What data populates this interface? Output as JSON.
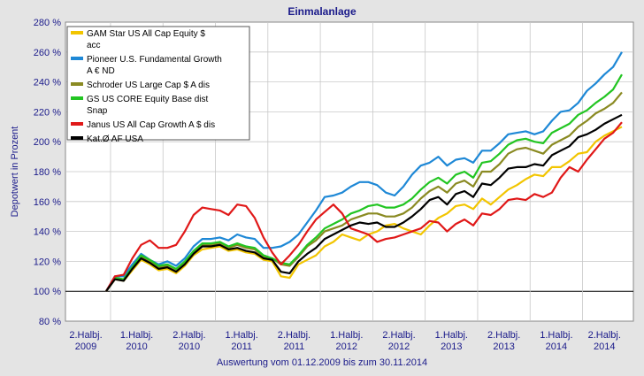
{
  "chart_data": {
    "type": "line",
    "title": "Einmalanlage",
    "ylabel": "Depotwert in Prozent",
    "footer": "Auswertung vom 01.12.2009 bis zum 30.11.2014",
    "ylim": [
      80,
      280
    ],
    "yticks": [
      "80 %",
      "100 %",
      "120 %",
      "140 %",
      "160 %",
      "180 %",
      "200 %",
      "220 %",
      "240 %",
      "260 %",
      "280 %"
    ],
    "xticks": [
      {
        "line1": "2.Halbj.",
        "line2": "2009"
      },
      {
        "line1": "1.Halbj.",
        "line2": "2010"
      },
      {
        "line1": "2.Halbj.",
        "line2": "2010"
      },
      {
        "line1": "1.Halbj.",
        "line2": "2011"
      },
      {
        "line1": "2.Halbj.",
        "line2": "2011"
      },
      {
        "line1": "1.Halbj.",
        "line2": "2012"
      },
      {
        "line1": "2.Halbj.",
        "line2": "2012"
      },
      {
        "line1": "1.Halbj.",
        "line2": "2013"
      },
      {
        "line1": "2.Halbj.",
        "line2": "2013"
      },
      {
        "line1": "1.Halbj.",
        "line2": "2014"
      },
      {
        "line1": "2.Halbj.",
        "line2": "2014"
      }
    ],
    "x": [
      "2009-12",
      "2010-01",
      "2010-02",
      "2010-03",
      "2010-04",
      "2010-05",
      "2010-06",
      "2010-07",
      "2010-08",
      "2010-09",
      "2010-10",
      "2010-11",
      "2010-12",
      "2011-01",
      "2011-02",
      "2011-03",
      "2011-04",
      "2011-05",
      "2011-06",
      "2011-07",
      "2011-08",
      "2011-09",
      "2011-10",
      "2011-11",
      "2011-12",
      "2012-01",
      "2012-02",
      "2012-03",
      "2012-04",
      "2012-05",
      "2012-06",
      "2012-07",
      "2012-08",
      "2012-09",
      "2012-10",
      "2012-11",
      "2012-12",
      "2013-01",
      "2013-02",
      "2013-03",
      "2013-04",
      "2013-05",
      "2013-06",
      "2013-07",
      "2013-08",
      "2013-09",
      "2013-10",
      "2013-11",
      "2013-12",
      "2014-01",
      "2014-02",
      "2014-03",
      "2014-04",
      "2014-05",
      "2014-06",
      "2014-07",
      "2014-08",
      "2014-09",
      "2014-10",
      "2014-11"
    ],
    "series": [
      {
        "name": "GAM Star US All Cap Equity $ acc",
        "color": "#f2c500",
        "values": [
          100,
          108,
          107,
          114,
          121,
          118,
          114,
          115,
          112,
          117,
          124,
          128,
          129,
          130,
          127,
          128,
          126,
          125,
          121,
          120,
          110,
          109,
          118,
          121,
          124,
          130,
          133,
          138,
          136,
          134,
          138,
          140,
          144,
          145,
          142,
          140,
          138,
          144,
          149,
          152,
          157,
          158,
          155,
          162,
          158,
          163,
          168,
          171,
          175,
          178,
          177,
          183,
          183,
          187,
          192,
          193,
          200,
          204,
          207,
          210
        ]
      },
      {
        "name": "Pioneer U.S. Fundamental Growth A € ND",
        "color": "#1e88d6",
        "values": [
          100,
          110,
          110,
          118,
          125,
          121,
          118,
          120,
          117,
          122,
          130,
          135,
          135,
          136,
          134,
          138,
          136,
          135,
          129,
          129,
          130,
          133,
          138,
          146,
          154,
          163,
          164,
          166,
          170,
          173,
          173,
          171,
          166,
          164,
          170,
          178,
          184,
          186,
          190,
          184,
          188,
          189,
          186,
          194,
          194,
          199,
          205,
          206,
          207,
          205,
          207,
          214,
          220,
          221,
          226,
          234,
          239,
          245,
          250,
          260
        ]
      },
      {
        "name": "Schroder US Large Cap $ A dis",
        "color": "#8a8a22",
        "values": [
          100,
          109,
          108,
          116,
          123,
          120,
          116,
          117,
          114,
          119,
          126,
          131,
          131,
          132,
          129,
          131,
          129,
          128,
          123,
          122,
          118,
          117,
          123,
          130,
          134,
          140,
          142,
          144,
          148,
          150,
          152,
          152,
          150,
          150,
          152,
          156,
          162,
          167,
          170,
          166,
          172,
          174,
          170,
          180,
          180,
          185,
          192,
          195,
          196,
          194,
          192,
          198,
          201,
          204,
          210,
          214,
          219,
          222,
          226,
          233
        ]
      },
      {
        "name": "GS US CORE Equity Base dist Snap",
        "color": "#22c522",
        "values": [
          100,
          109,
          108,
          116,
          124,
          121,
          117,
          118,
          115,
          120,
          127,
          132,
          132,
          133,
          130,
          132,
          130,
          129,
          124,
          122,
          119,
          118,
          124,
          131,
          136,
          142,
          145,
          148,
          152,
          154,
          157,
          158,
          156,
          156,
          158,
          162,
          168,
          173,
          176,
          172,
          178,
          180,
          176,
          186,
          187,
          192,
          198,
          201,
          202,
          200,
          199,
          206,
          209,
          212,
          218,
          221,
          226,
          230,
          235,
          245
        ]
      },
      {
        "name": "Janus US All Cap Growth A $ dis",
        "color": "#e01818",
        "values": [
          100,
          110,
          111,
          122,
          131,
          134,
          129,
          129,
          131,
          140,
          151,
          156,
          155,
          154,
          151,
          158,
          157,
          149,
          136,
          126,
          118,
          124,
          131,
          140,
          148,
          153,
          158,
          152,
          142,
          140,
          138,
          133,
          135,
          136,
          138,
          140,
          142,
          147,
          146,
          140,
          145,
          148,
          144,
          152,
          151,
          155,
          161,
          162,
          161,
          165,
          163,
          166,
          176,
          183,
          180,
          188,
          195,
          202,
          206,
          213
        ]
      },
      {
        "name": "Kat.Ø AF USA",
        "color": "#000000",
        "values": [
          100,
          108,
          107,
          115,
          122,
          119,
          115,
          116,
          113,
          118,
          125,
          130,
          130,
          131,
          128,
          129,
          127,
          126,
          122,
          121,
          113,
          112,
          120,
          125,
          129,
          135,
          138,
          141,
          144,
          146,
          145,
          146,
          143,
          143,
          146,
          150,
          155,
          161,
          163,
          158,
          165,
          167,
          163,
          172,
          171,
          176,
          182,
          183,
          183,
          185,
          184,
          191,
          194,
          197,
          203,
          205,
          208,
          212,
          215,
          218
        ]
      }
    ]
  }
}
